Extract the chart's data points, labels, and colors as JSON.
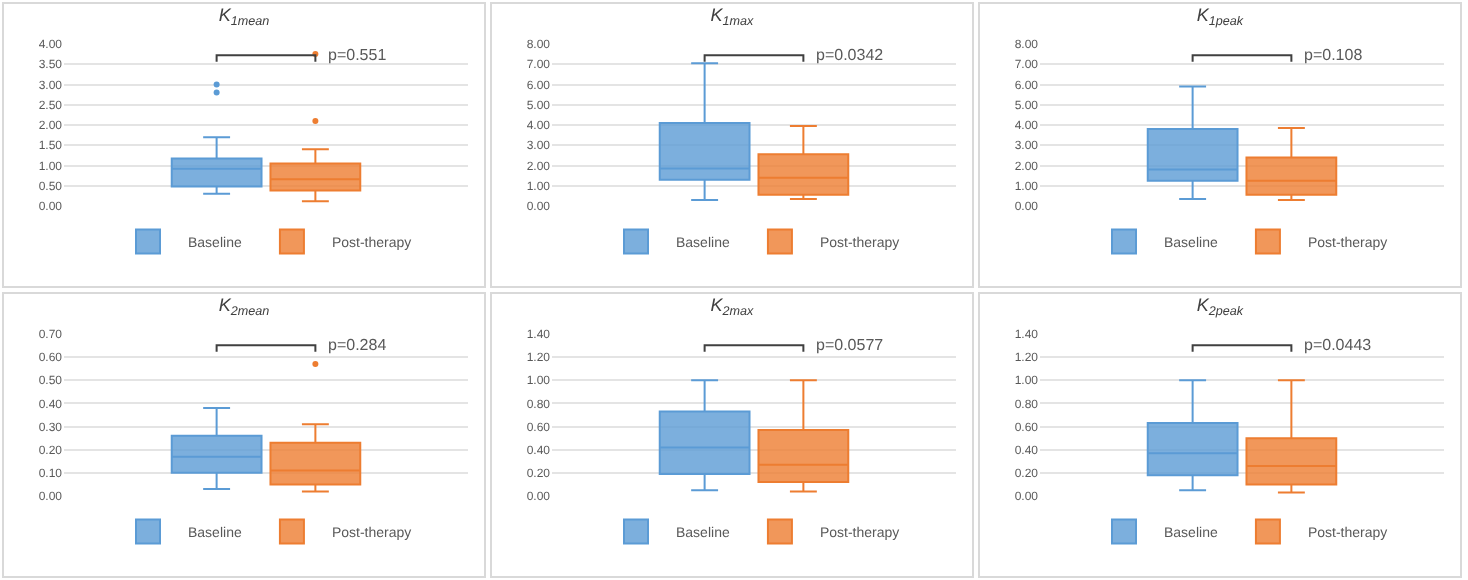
{
  "chart_data": [
    {
      "type": "box",
      "title": "K$_{1mean}$",
      "categories": [
        null
      ],
      "legend": "bottom",
      "grid": "y",
      "tick_labels": "y",
      "annotations": [
        "p=0.551"
      ],
      "ylim": [
        0,
        4
      ],
      "yticks": [
        {
          "value": 0,
          "label": "0.00"
        },
        {
          "value": 0.5,
          "label": "0.50"
        },
        {
          "value": 1,
          "label": "1.00"
        },
        {
          "value": 1.5,
          "label": "1.50"
        },
        {
          "value": 2,
          "label": "2.00"
        },
        {
          "value": 2.5,
          "label": "2.50"
        },
        {
          "value": 3,
          "label": "3.00"
        },
        {
          "value": 3.5,
          "label": "3.50"
        },
        {
          "value": 4,
          "label": "4.00"
        }
      ],
      "series": [
        {
          "name": "Baseline",
          "color": "#5b9bd5",
          "boxes": [
            {
              "low": 0.3,
              "q1": 0.48,
              "median": 0.92,
              "q3": 1.17,
              "high": 1.7,
              "outliers": [
                2.8,
                3.0
              ]
            }
          ]
        },
        {
          "name": "Post-therapy",
          "color": "#ed7d31",
          "boxes": [
            {
              "low": 0.12,
              "q1": 0.38,
              "median": 0.66,
              "q3": 1.05,
              "high": 1.4,
              "outliers": [
                2.1,
                3.75
              ]
            }
          ]
        }
      ]
    },
    {
      "type": "box",
      "title": "K$_{1max}$",
      "categories": [
        null
      ],
      "legend": "bottom",
      "grid": "y",
      "tick_labels": "y",
      "annotations": [
        "p=0.0342"
      ],
      "ylim": [
        0,
        8
      ],
      "yticks": [
        {
          "value": 0,
          "label": "0.00"
        },
        {
          "value": 1,
          "label": "1.00"
        },
        {
          "value": 2,
          "label": "2.00"
        },
        {
          "value": 3,
          "label": "3.00"
        },
        {
          "value": 4,
          "label": "4.00"
        },
        {
          "value": 5,
          "label": "5.00"
        },
        {
          "value": 6,
          "label": "6.00"
        },
        {
          "value": 7,
          "label": "7.00"
        },
        {
          "value": 8,
          "label": "8.00"
        }
      ],
      "series": [
        {
          "name": "Baseline",
          "color": "#5b9bd5",
          "boxes": [
            {
              "low": 0.3,
              "q1": 1.3,
              "median": 1.85,
              "q3": 4.1,
              "high": 7.05
            }
          ]
        },
        {
          "name": "Post-therapy",
          "color": "#ed7d31",
          "boxes": [
            {
              "low": 0.35,
              "q1": 0.55,
              "median": 1.4,
              "q3": 2.55,
              "high": 3.95
            }
          ]
        }
      ]
    },
    {
      "type": "box",
      "title": "K$_{1peak}$",
      "categories": [
        null
      ],
      "legend": "bottom",
      "grid": "y",
      "tick_labels": "y",
      "annotations": [
        "p=0.108"
      ],
      "ylim": [
        0,
        8
      ],
      "yticks": [
        {
          "value": 0,
          "label": "0.00"
        },
        {
          "value": 1,
          "label": "1.00"
        },
        {
          "value": 2,
          "label": "2.00"
        },
        {
          "value": 3,
          "label": "3.00"
        },
        {
          "value": 4,
          "label": "4.00"
        },
        {
          "value": 5,
          "label": "5.00"
        },
        {
          "value": 6,
          "label": "6.00"
        },
        {
          "value": 7,
          "label": "7.00"
        },
        {
          "value": 8,
          "label": "8.00"
        }
      ],
      "series": [
        {
          "name": "Baseline",
          "color": "#5b9bd5",
          "boxes": [
            {
              "low": 0.35,
              "q1": 1.25,
              "median": 1.8,
              "q3": 3.8,
              "high": 5.9
            }
          ]
        },
        {
          "name": "Post-therapy",
          "color": "#ed7d31",
          "boxes": [
            {
              "low": 0.3,
              "q1": 0.55,
              "median": 1.25,
              "q3": 2.4,
              "high": 3.85
            }
          ]
        }
      ]
    },
    {
      "type": "box",
      "title": "K$_{2mean}$",
      "categories": [
        null
      ],
      "legend": "bottom",
      "grid": "y",
      "tick_labels": "y",
      "annotations": [
        "p=0.284"
      ],
      "ylim": [
        0,
        0.7
      ],
      "yticks": [
        {
          "value": 0,
          "label": "0.00"
        },
        {
          "value": 0.1,
          "label": "0.10"
        },
        {
          "value": 0.2,
          "label": "0.20"
        },
        {
          "value": 0.3,
          "label": "0.30"
        },
        {
          "value": 0.4,
          "label": "0.40"
        },
        {
          "value": 0.5,
          "label": "0.50"
        },
        {
          "value": 0.6,
          "label": "0.60"
        },
        {
          "value": 0.7,
          "label": "0.70"
        }
      ],
      "series": [
        {
          "name": "Baseline",
          "color": "#5b9bd5",
          "boxes": [
            {
              "low": 0.03,
              "q1": 0.1,
              "median": 0.17,
              "q3": 0.26,
              "high": 0.38
            }
          ]
        },
        {
          "name": "Post-therapy",
          "color": "#ed7d31",
          "boxes": [
            {
              "low": 0.02,
              "q1": 0.05,
              "median": 0.11,
              "q3": 0.23,
              "high": 0.31,
              "outliers": [
                0.57
              ]
            }
          ]
        }
      ]
    },
    {
      "type": "box",
      "title": "K$_{2max}$",
      "categories": [
        null
      ],
      "legend": "bottom",
      "grid": "y",
      "tick_labels": "y",
      "annotations": [
        "p=0.0577"
      ],
      "ylim": [
        0,
        1.4
      ],
      "yticks": [
        {
          "value": 0,
          "label": "0.00"
        },
        {
          "value": 0.2,
          "label": "0.20"
        },
        {
          "value": 0.4,
          "label": "0.40"
        },
        {
          "value": 0.6,
          "label": "0.60"
        },
        {
          "value": 0.8,
          "label": "0.80"
        },
        {
          "value": 1,
          "label": "1.00"
        },
        {
          "value": 1.2,
          "label": "1.20"
        },
        {
          "value": 1.4,
          "label": "1.40"
        }
      ],
      "series": [
        {
          "name": "Baseline",
          "color": "#5b9bd5",
          "boxes": [
            {
              "low": 0.05,
              "q1": 0.19,
              "median": 0.42,
              "q3": 0.73,
              "high": 1.0
            }
          ]
        },
        {
          "name": "Post-therapy",
          "color": "#ed7d31",
          "boxes": [
            {
              "low": 0.04,
              "q1": 0.12,
              "median": 0.27,
              "q3": 0.57,
              "high": 1.0
            }
          ]
        }
      ]
    },
    {
      "type": "box",
      "title": "K$_{2peak}$",
      "categories": [
        null
      ],
      "legend": "bottom",
      "grid": "y",
      "tick_labels": "y",
      "annotations": [
        "p=0.0443"
      ],
      "ylim": [
        0,
        1.4
      ],
      "yticks": [
        {
          "value": 0,
          "label": "0.00"
        },
        {
          "value": 0.2,
          "label": "0.20"
        },
        {
          "value": 0.4,
          "label": "0.40"
        },
        {
          "value": 0.6,
          "label": "0.60"
        },
        {
          "value": 0.8,
          "label": "0.80"
        },
        {
          "value": 1,
          "label": "1.00"
        },
        {
          "value": 1.2,
          "label": "1.20"
        },
        {
          "value": 1.4,
          "label": "1.40"
        }
      ],
      "series": [
        {
          "name": "Baseline",
          "color": "#5b9bd5",
          "boxes": [
            {
              "low": 0.05,
              "q1": 0.18,
              "median": 0.37,
              "q3": 0.63,
              "high": 1.0
            }
          ]
        },
        {
          "name": "Post-therapy",
          "color": "#ed7d31",
          "boxes": [
            {
              "low": 0.03,
              "q1": 0.1,
              "median": 0.26,
              "q3": 0.5,
              "high": 1.0
            }
          ]
        }
      ]
    }
  ]
}
